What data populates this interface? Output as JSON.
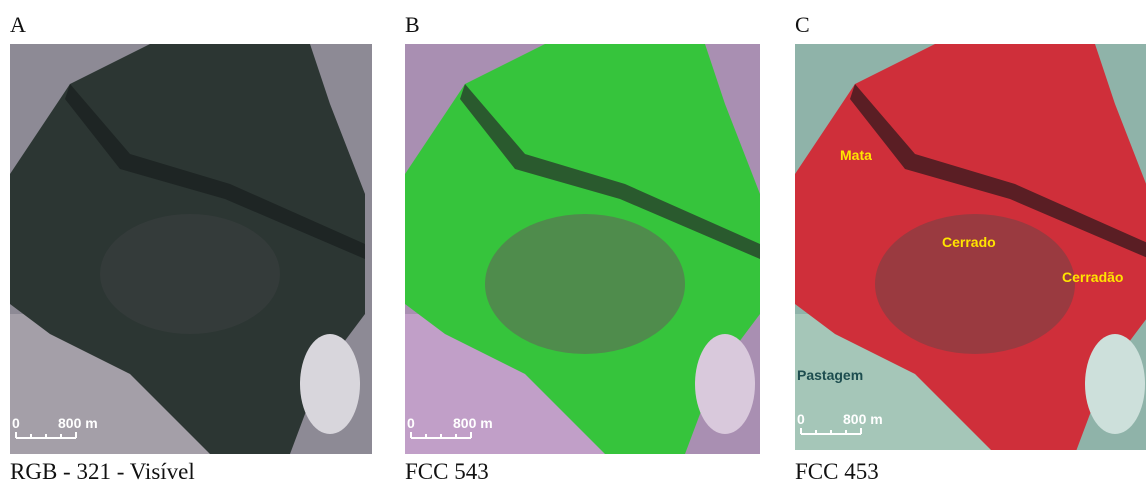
{
  "panels": [
    {
      "label": "A",
      "caption": "RGB - 321 - Visível",
      "scale": {
        "start": "0",
        "end": "800 m"
      }
    },
    {
      "label": "B",
      "caption": "FCC 543",
      "scale": {
        "start": "0",
        "end": "800 m"
      }
    },
    {
      "label": "C",
      "caption": "FCC 453",
      "scale": {
        "start": "0",
        "end": "800 m"
      },
      "annotations": [
        "Mata",
        "Cerrado",
        "Cerradão",
        "Pastagem"
      ]
    }
  ]
}
